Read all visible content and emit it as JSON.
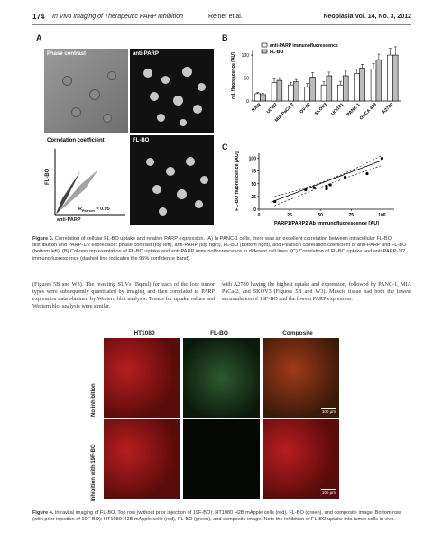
{
  "header": {
    "page_number": "174",
    "article_title": "In Vivo Imaging of Therapeutic PARP Inhibition",
    "authors": "Reiner et al.",
    "journal": "Neoplasia Vol. 14, No. 3, 2012"
  },
  "figure3": {
    "panel_a": "A",
    "panel_b": "B",
    "panel_c": "C",
    "img_phase": "Phase contrast",
    "img_antiparp": "anti-PARP",
    "img_corr": "Correlation coefficient",
    "img_flbo": "FL-BO",
    "corr_y": "FL-BO",
    "corr_x": "anti-PARP",
    "corr_r": "R",
    "corr_r_sub": "Pearson",
    "corr_r_value": "= 0.95",
    "caption_lead": "Figure 3.",
    "caption": "Correlation of cellular FL-BO uptake and relative PARP expression. (A) In PANC-1 cells, there was an excellent correlation between intracellular FL-BO distribution and PARP-1/2 expression: phase contrast (top left), anti-PARP (top right), FL-BO (bottom right), and Pearson correlation coefficient of anti-PARP and FL-BO (bottom left). (B) Column representation of FL-BO uptake and anti-PARP immunofluorescence in different cell lines. (C) Correlation of FL-BO uptake and anti-PARP-1/2 immunofluorescence (dashed line indicates the 95% confidence band)."
  },
  "chart_data": [
    {
      "type": "bar",
      "categories": [
        "RAW",
        "UCI07",
        "MIA PaCa-2",
        "OV-90",
        "SKOV3",
        "UCI101",
        "PANC-1",
        "OVCA 429",
        "A2780"
      ],
      "series": [
        {
          "name": "anti-PARP immunofluorescence",
          "values": [
            16,
            40,
            35,
            30,
            35,
            35,
            60,
            70,
            100
          ],
          "color": "#ffffff"
        },
        {
          "name": "FL-BO",
          "values": [
            14,
            45,
            42,
            52,
            55,
            55,
            72,
            90,
            100
          ],
          "color": "#bbbbbb"
        }
      ],
      "errors": [
        [
          3,
          8,
          6,
          8,
          7,
          8,
          10,
          12,
          15
        ],
        [
          3,
          6,
          5,
          10,
          8,
          10,
          8,
          12,
          18
        ]
      ],
      "ylabel": "rel. fluorescence [AU]",
      "yticks": [
        "0",
        "50",
        "100"
      ],
      "ylim": [
        0,
        110
      ],
      "legend": "top"
    },
    {
      "type": "scatter",
      "x": [
        13,
        38,
        45,
        55,
        55,
        58,
        70,
        88,
        100
      ],
      "y": [
        15,
        38,
        42,
        40,
        45,
        48,
        63,
        70,
        100
      ],
      "xlabel": "PARP1/PARP2 Ab immunofluorescence [AU]",
      "ylabel": "FL-BO fluorescence [AU]",
      "xticks": [
        "0",
        "25",
        "50",
        "75",
        "100"
      ],
      "yticks": [
        "0",
        "25",
        "50",
        "75",
        "100"
      ],
      "xlim": [
        0,
        110
      ],
      "ylim": [
        0,
        110
      ]
    }
  ],
  "body": {
    "left": "(Figures 5B and W3). The resulting SUVs (Bq/ml) for each of the four tumor types were subsequently quantitated by imaging and then correlated to PARP expression data obtained by Western blot analysis. Trends for uptake values and Western blot analysis were similar,",
    "right": "with A2780 having the highest uptake and expression, followed by PANC-1, MIA PaCa-2, and SKOV3 (Figures 5B and W3). Muscle tissue had both the lowest accumulation of 18F-BO and the lowest PARP expression."
  },
  "figure4": {
    "col_red": "HT1080",
    "col_green": "FL-BO",
    "col_comp": "Composite",
    "row1": "No inhibition",
    "row2": "Inhibition with 19F-BO",
    "scalebar": "100 μm",
    "caption_lead": "Figure 4.",
    "caption": "Intravital imaging of FL-BO. Top row (without prior injection of 19F-BO): HT1080 H2B mApple cells (red), FL-BO (green), and composite image. Bottom row (with prior injection of 19F-BO): HT1080 H2B mApple cells (red), FL-BO (green), and composite image. Note the inhibition of FL-BO uptake into tumor cells in vivo."
  }
}
